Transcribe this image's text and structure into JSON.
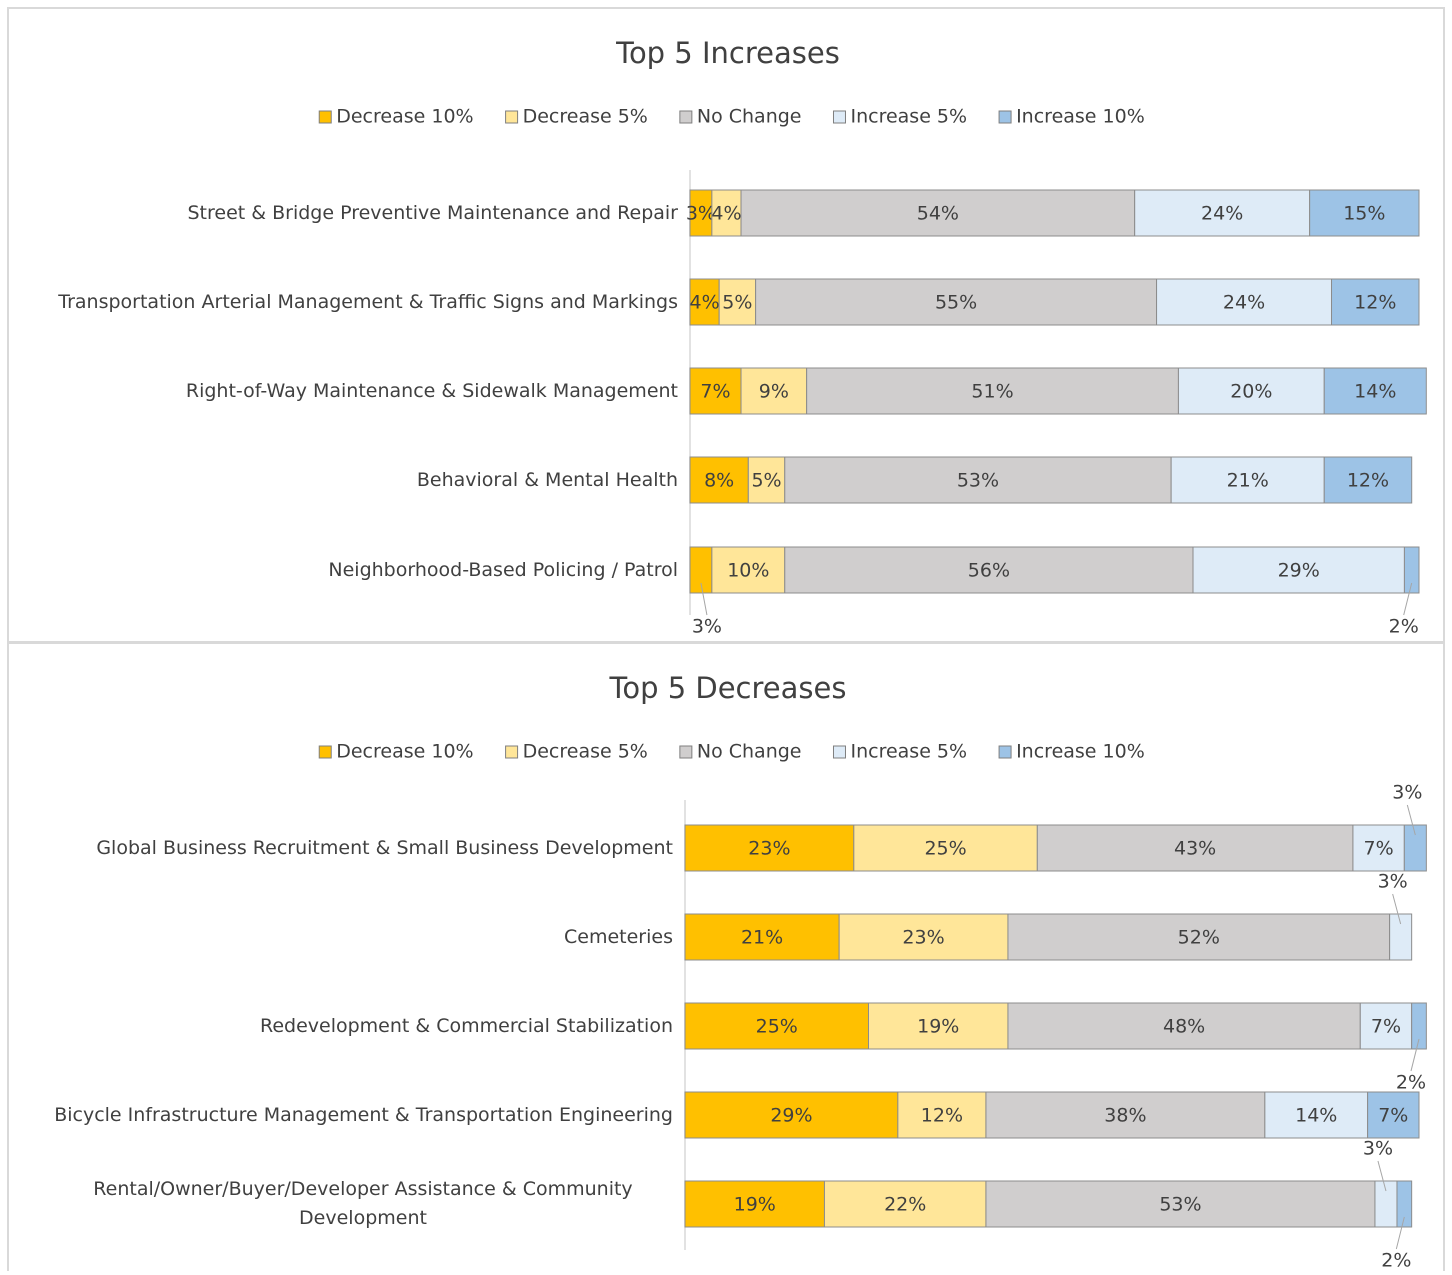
{
  "chart_data": [
    {
      "type": "stacked_barh",
      "title": "Top 5 Increases",
      "categories": [
        "Street & Bridge Preventive Maintenance and Repair",
        "Transportation Arterial Management & Traffic Signs and Markings",
        "Right-of-Way Maintenance & Sidewalk Management",
        "Behavioral & Mental Health",
        "Neighborhood-Based Policing / Patrol"
      ],
      "series": [
        {
          "name": "Decrease 10%",
          "color": "#ffc000",
          "values": [
            3,
            4,
            7,
            8,
            3
          ],
          "value_labels": [
            "3%",
            "4%",
            "7%",
            "8%",
            "3%"
          ]
        },
        {
          "name": "Decrease 5%",
          "color": "#ffe699",
          "values": [
            4,
            5,
            9,
            5,
            10
          ],
          "value_labels": [
            "4%",
            "5%",
            "9%",
            "5%",
            "10%"
          ]
        },
        {
          "name": "No Change",
          "color": "#d0cece",
          "values": [
            54,
            55,
            51,
            53,
            56
          ],
          "value_labels": [
            "54%",
            "55%",
            "51%",
            "53%",
            "56%"
          ]
        },
        {
          "name": "Increase 5%",
          "color": "#deebf7",
          "values": [
            24,
            24,
            20,
            21,
            29
          ],
          "value_labels": [
            "24%",
            "24%",
            "20%",
            "21%",
            "29%"
          ]
        },
        {
          "name": "Increase 10%",
          "color": "#9dc3e6",
          "values": [
            15,
            12,
            14,
            12,
            2
          ],
          "value_labels": [
            "15%",
            "12%",
            "14%",
            "12%",
            "2%"
          ]
        }
      ],
      "xlim": [
        0,
        100
      ],
      "legend": "top"
    },
    {
      "type": "stacked_barh",
      "title": "Top 5 Decreases",
      "categories": [
        "Global Business Recruitment & Small Business Development",
        "Cemeteries",
        "Redevelopment & Commercial Stabilization",
        "Bicycle Infrastructure Management & Transportation Engineering",
        "Rental/Owner/Buyer/Developer Assistance & Community Development"
      ],
      "series": [
        {
          "name": "Decrease 10%",
          "color": "#ffc000",
          "values": [
            23,
            21,
            25,
            29,
            19
          ],
          "value_labels": [
            "23%",
            "21%",
            "25%",
            "29%",
            "19%"
          ]
        },
        {
          "name": "Decrease 5%",
          "color": "#ffe699",
          "values": [
            25,
            23,
            19,
            12,
            22
          ],
          "value_labels": [
            "25%",
            "23%",
            "19%",
            "12%",
            "22%"
          ]
        },
        {
          "name": "No Change",
          "color": "#d0cece",
          "values": [
            43,
            52,
            48,
            38,
            53
          ],
          "value_labels": [
            "43%",
            "52%",
            "48%",
            "38%",
            "53%"
          ]
        },
        {
          "name": "Increase 5%",
          "color": "#deebf7",
          "values": [
            7,
            3,
            7,
            14,
            3
          ],
          "value_labels": [
            "7%",
            "3%",
            "7%",
            "14%",
            "3%"
          ]
        },
        {
          "name": "Increase 10%",
          "color": "#9dc3e6",
          "values": [
            3,
            null,
            2,
            7,
            2
          ],
          "value_labels": [
            "3%",
            null,
            "2%",
            "7%",
            "2%"
          ]
        }
      ],
      "xlim": [
        0,
        100
      ],
      "legend": "top"
    }
  ]
}
